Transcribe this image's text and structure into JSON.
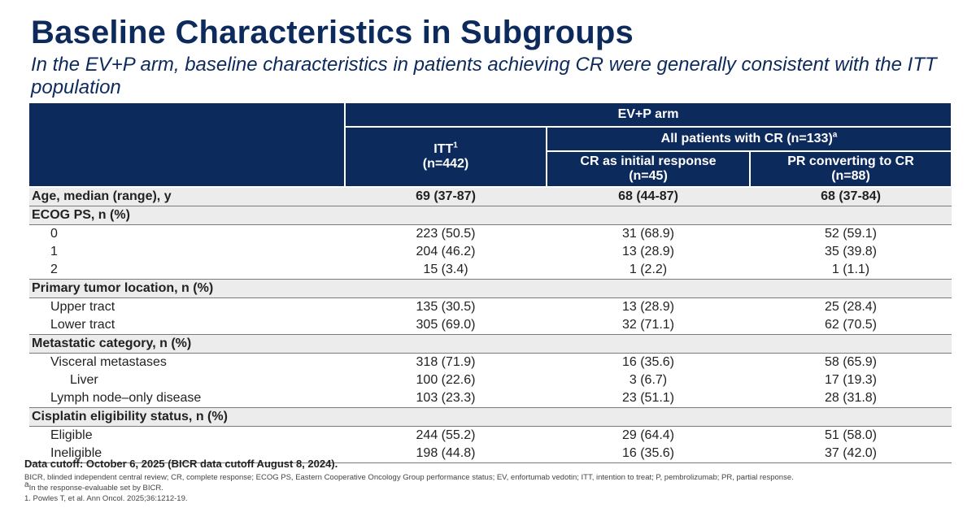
{
  "title": "Baseline Characteristics in Subgroups",
  "subtitle": "In the EV+P arm, baseline characteristics in patients achieving CR were generally consistent with the ITT population",
  "header": {
    "arm": "EV+P arm",
    "itt_label": "ITT",
    "itt_sup": "1",
    "itt_n": "(n=442)",
    "cr_all_label": "All patients with CR (n=133)",
    "cr_all_sup": "a",
    "cr_initial_label": "CR as initial response",
    "cr_initial_n": "(n=45)",
    "pr_convert_label": "PR converting to CR",
    "pr_convert_n": "(n=88)"
  },
  "rows": [
    {
      "label": "Age, median (range), y",
      "itt": "69 (37-87)",
      "cr_initial": "68 (44-87)",
      "pr_convert": "68 (37-84)"
    },
    {
      "label": "ECOG PS, n (%)"
    },
    {
      "label": "0",
      "itt": "223 (50.5)",
      "cr_initial": "31 (68.9)",
      "pr_convert": "52 (59.1)"
    },
    {
      "label": "1",
      "itt": "204 (46.2)",
      "cr_initial": "13 (28.9)",
      "pr_convert": "35 (39.8)"
    },
    {
      "label": "2",
      "itt": "15 (3.4)",
      "cr_initial": "1 (2.2)",
      "pr_convert": "1 (1.1)"
    },
    {
      "label": "Primary tumor location, n (%)"
    },
    {
      "label": "Upper tract",
      "itt": "135 (30.5)",
      "cr_initial": "13 (28.9)",
      "pr_convert": "25 (28.4)"
    },
    {
      "label": "Lower tract",
      "itt": "305 (69.0)",
      "cr_initial": "32 (71.1)",
      "pr_convert": "62 (70.5)"
    },
    {
      "label": "Metastatic category, n (%)"
    },
    {
      "label": "Visceral metastases",
      "itt": "318 (71.9)",
      "cr_initial": "16 (35.6)",
      "pr_convert": "58 (65.9)"
    },
    {
      "label": "Liver",
      "itt": "100 (22.6)",
      "cr_initial": "3 (6.7)",
      "pr_convert": "17 (19.3)"
    },
    {
      "label": "Lymph node–only disease",
      "itt": "103 (23.3)",
      "cr_initial": "23 (51.1)",
      "pr_convert": "28 (31.8)"
    },
    {
      "label": "Cisplatin eligibility status, n (%)"
    },
    {
      "label": "Eligible",
      "itt": "244 (55.2)",
      "cr_initial": "29 (64.4)",
      "pr_convert": "51 (58.0)"
    },
    {
      "label": "Ineligible",
      "itt": "198 (44.8)",
      "cr_initial": "16 (35.6)",
      "pr_convert": "37 (42.0)"
    }
  ],
  "footnotes": {
    "cutoff": "Data cutoff: October 6, 2025 (BICR data cutoff August 8, 2024).",
    "abbreviations": "BICR, blinded independent central review; CR, complete response; ECOG PS, Eastern Cooperative Oncology Group performance status; EV, enfortumab vedotin; ITT, intention to treat; P, pembrolizumab; PR, partial response.",
    "note_a_sup": "a",
    "note_a": "In the response-evaluable set by BICR.",
    "ref1": "1. Powles T, et al. Ann Oncol. 2025;36:1212-19."
  }
}
